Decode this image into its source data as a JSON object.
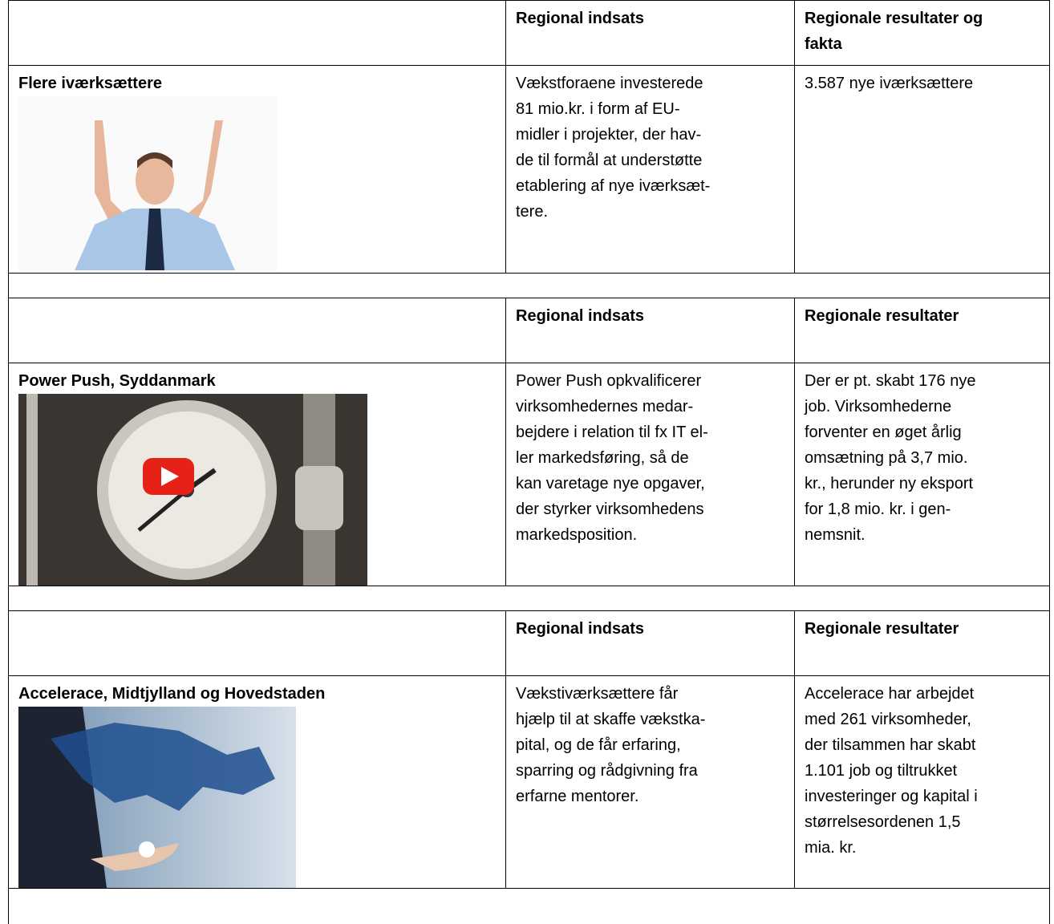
{
  "sections": [
    {
      "header": {
        "col2": [
          "Regional indsats"
        ],
        "col3": [
          "Regionale resultater og",
          "fakta"
        ]
      },
      "title": "Flere iværksættere",
      "col2": [
        "Vækstforaene investerede",
        "81 mio.kr. i form af EU-",
        "midler i projekter, der hav-",
        "de til formål at understøtte",
        "etablering af nye iværksæt-",
        "tere."
      ],
      "col3": [
        "3.587 nye iværksættere"
      ]
    },
    {
      "header": {
        "col2": [
          "Regional indsats"
        ],
        "col3": [
          "Regionale resultater"
        ]
      },
      "title": "Power Push, Syddanmark",
      "col2": [
        "Power Push opkvalificerer",
        "virksomhedernes medar-",
        "bejdere i relation til fx IT el-",
        "ler markedsføring, så de",
        "kan varetage nye opgaver,",
        "der styrker virksomhedens",
        "markedsposition."
      ],
      "col3": [
        "Der er pt. skabt 176 nye",
        "job. Virksomhederne",
        "forventer en øget årlig",
        "omsætning på 3,7 mio.",
        "kr., herunder ny eksport",
        "for 1,8 mio. kr. i gen-",
        "nemsnit."
      ]
    },
    {
      "header": {
        "col2": [
          "Regional indsats"
        ],
        "col3": [
          "Regionale resultater"
        ]
      },
      "title": "Accelerace, Midtjylland og Hovedstaden",
      "col2": [
        "Vækstiværksættere får",
        "hjælp til at skaffe vækstka-",
        "pital, og de får erfaring,",
        "sparring og rådgivning fra",
        "erfarne mentorer."
      ],
      "col3": [
        "Accelerace har arbejdet",
        "med 261 virksomheder,",
        "der tilsammen har skabt",
        "1.101 job og tiltrukket",
        "investeringer og kapital i",
        "størrelsesordenen 1,5",
        "mia. kr."
      ]
    }
  ]
}
